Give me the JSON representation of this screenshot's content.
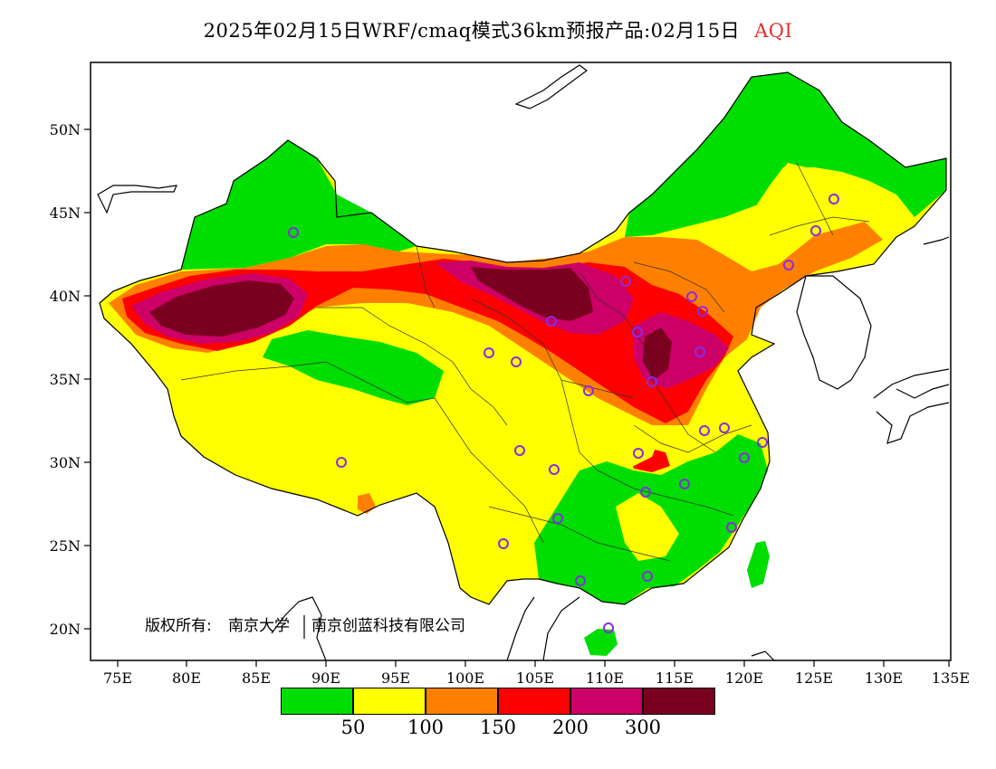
{
  "title": {
    "text": "2025年02月15日WRF/cmaq模式36km预报产品:02月15日",
    "product": "AQI",
    "product_color": "#e03030"
  },
  "axes": {
    "x_labels": [
      "75E",
      "80E",
      "85E",
      "90E",
      "95E",
      "100E",
      "105E",
      "110E",
      "115E",
      "120E",
      "125E",
      "130E",
      "135E"
    ],
    "y_labels": [
      "50N",
      "45N",
      "40N",
      "35N",
      "30N",
      "25N",
      "20N"
    ]
  },
  "copyright": {
    "label": "版权所有:",
    "org1": "南京大学",
    "org2": "南京创蓝科技有限公司"
  },
  "legend": {
    "colors": [
      "#00dd00",
      "#ffff00",
      "#ff8000",
      "#ff0000",
      "#cc0066",
      "#7a0020"
    ],
    "thresholds": [
      "50",
      "100",
      "150",
      "200",
      "300"
    ]
  },
  "aqi_colors": {
    "good": "#00dd00",
    "moderate": "#ffff00",
    "sensitive": "#ff8000",
    "unhealthy": "#ff0000",
    "very_unhealthy": "#cc0066",
    "hazardous": "#7a0020"
  },
  "station_marker_color": "#8a2be2"
}
